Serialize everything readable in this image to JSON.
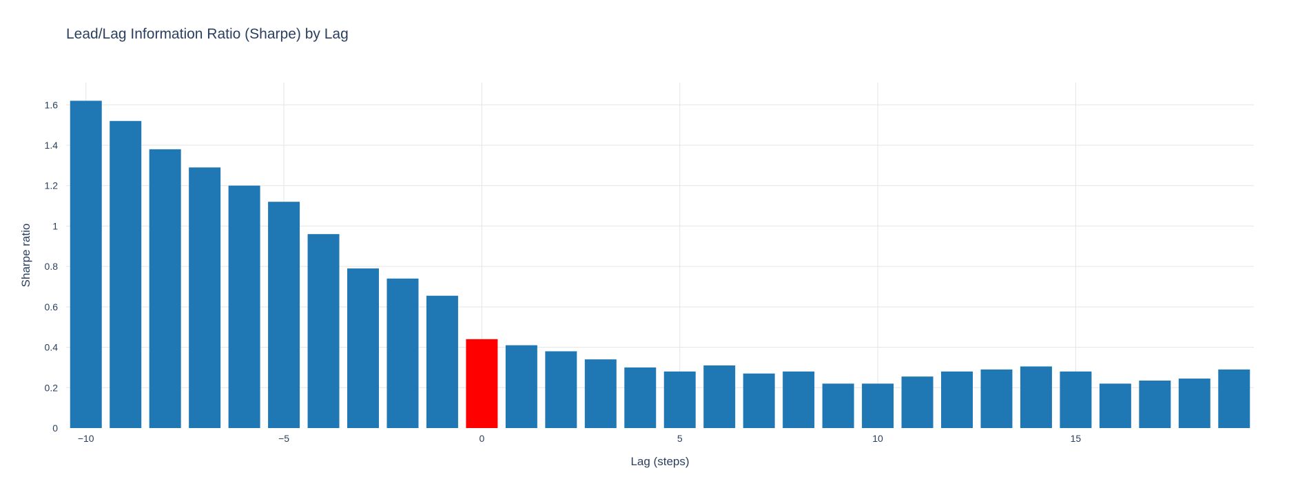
{
  "chart_data": {
    "type": "bar",
    "title": "Lead/Lag Information Ratio (Sharpe) by Lag",
    "xlabel": "Lag (steps)",
    "ylabel": "Sharpe ratio",
    "x": [
      -10,
      -9,
      -8,
      -7,
      -6,
      -5,
      -4,
      -3,
      -2,
      -1,
      0,
      1,
      2,
      3,
      4,
      5,
      6,
      7,
      8,
      9,
      10,
      11,
      12,
      13,
      14,
      15,
      16,
      17,
      18,
      19
    ],
    "values": [
      1.62,
      1.52,
      1.38,
      1.29,
      1.2,
      1.12,
      0.96,
      0.79,
      0.74,
      0.655,
      0.44,
      0.41,
      0.38,
      0.34,
      0.3,
      0.28,
      0.31,
      0.27,
      0.28,
      0.22,
      0.22,
      0.255,
      0.28,
      0.29,
      0.305,
      0.28,
      0.22,
      0.235,
      0.245,
      0.29
    ],
    "highlight_x": 0,
    "ylim": [
      0,
      1.71
    ],
    "xlim": [
      -10.5,
      19.5
    ],
    "xticks": [
      -10,
      -5,
      0,
      5,
      10,
      15
    ],
    "xtick_labels": [
      "−10",
      "−5",
      "0",
      "5",
      "10",
      "15"
    ],
    "yticks": [
      0,
      0.2,
      0.4,
      0.6,
      0.8,
      1,
      1.2,
      1.4,
      1.6
    ],
    "ytick_labels": [
      "0",
      "0.2",
      "0.4",
      "0.6",
      "0.8",
      "1",
      "1.2",
      "1.4",
      "1.6"
    ],
    "grid": true,
    "colors": {
      "bar": "#1f77b4",
      "highlight": "#ff0000",
      "grid": "#e5e5e5",
      "text": "#2a3f5f"
    }
  }
}
